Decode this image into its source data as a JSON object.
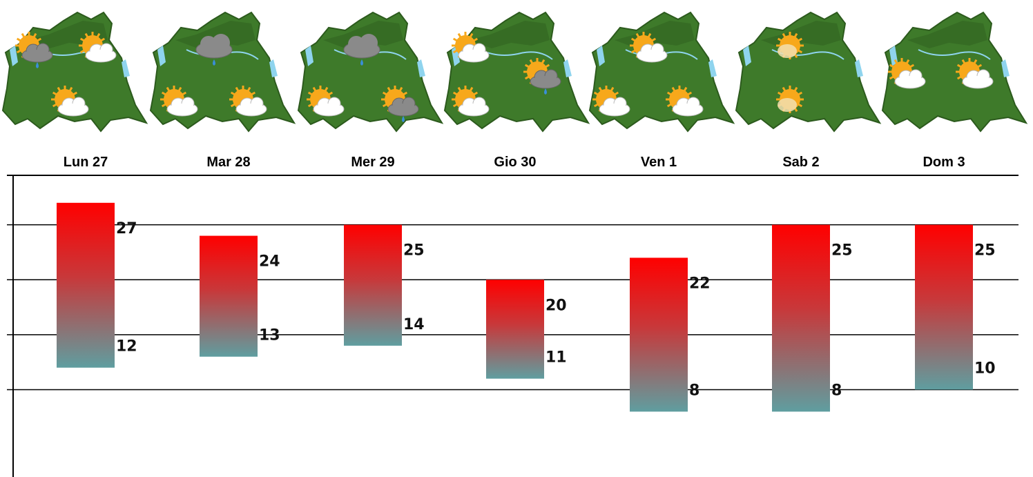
{
  "days": [
    {
      "label": "Lun 27",
      "max": 27,
      "min": 12,
      "icons": [
        "sun-cloud-rain",
        "sun-cloud",
        "sun-cloud"
      ]
    },
    {
      "label": "Mar 28",
      "max": 24,
      "min": 13,
      "icons": [
        "rain-cloud",
        "sun-cloud",
        "sun-cloud"
      ]
    },
    {
      "label": "Mer 29",
      "max": 25,
      "min": 14,
      "icons": [
        "rain-cloud",
        "sun-cloud",
        "sun-cloud-rain"
      ]
    },
    {
      "label": "Gio 30",
      "max": 20,
      "min": 11,
      "icons": [
        "sun-cloud",
        "sun-cloud-rain",
        "sun-cloud"
      ]
    },
    {
      "label": "Ven 1",
      "max": 22,
      "min": 8,
      "icons": [
        "sun-cloud",
        "sun-cloud",
        "sun-cloud"
      ]
    },
    {
      "label": "Sab 2",
      "max": 25,
      "min": 8,
      "icons": [
        "sun-haze",
        "sun-haze"
      ]
    },
    {
      "label": "Dom 3",
      "max": 25,
      "min": 10,
      "icons": [
        "sun-cloud",
        "sun-cloud"
      ]
    }
  ],
  "chart_data": {
    "type": "bar",
    "categories": [
      "Lun 27",
      "Mar 28",
      "Mer 29",
      "Gio 30",
      "Ven 1",
      "Sab 2",
      "Dom 3"
    ],
    "series": [
      {
        "name": "",
        "values": [
          27,
          24,
          25,
          20,
          22,
          25,
          25
        ]
      },
      {
        "name": "",
        "values": [
          12,
          13,
          14,
          11,
          8,
          8,
          10
        ]
      }
    ],
    "ylim": [
      4,
      29.5
    ],
    "gridlines": [
      10,
      15,
      20,
      25
    ],
    "grid": true,
    "colors": {
      "top": "#ff0000",
      "mid": "#c8383a",
      "bottom": "#5f9ea0"
    }
  },
  "map_colors": {
    "land": "#3e7a2a",
    "land_dark": "#2c5a1d",
    "water": "#8fd4ee",
    "sun": "#f7a81b",
    "cloud": "#ffffff",
    "rain_cloud": "#8a8a8a",
    "drop": "#3a8ed8"
  }
}
